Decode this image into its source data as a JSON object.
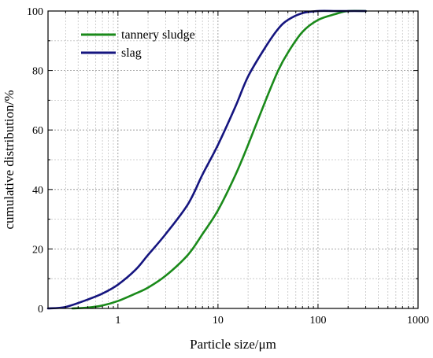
{
  "chart_data": {
    "type": "line",
    "xlabel": "Particle size/μm",
    "ylabel": "cumulative distribution/%",
    "x_scale": "log",
    "xlim": [
      0.2,
      1000
    ],
    "ylim": [
      0,
      100
    ],
    "x_ticks": [
      1,
      10,
      100,
      1000
    ],
    "x_tick_labels": [
      "1",
      "10",
      "100",
      "1000"
    ],
    "y_ticks": [
      0,
      20,
      40,
      60,
      80,
      100
    ],
    "y_tick_labels": [
      "0",
      "20",
      "40",
      "60",
      "80",
      "100"
    ],
    "grid": "dotted, major and minor",
    "legend_position": "top-left",
    "series": [
      {
        "name": "tannery sludge",
        "color": "#1a8a1a",
        "x": [
          0.35,
          0.5,
          0.7,
          1,
          1.5,
          2,
          3,
          5,
          7,
          10,
          15,
          20,
          30,
          40,
          50,
          70,
          100,
          150,
          200,
          300
        ],
        "y": [
          0,
          0.3,
          1,
          2.5,
          5,
          7,
          11,
          18,
          25,
          33,
          45,
          55,
          70,
          80,
          86,
          93,
          97,
          99,
          100,
          100
        ]
      },
      {
        "name": "slag",
        "color": "#15157f",
        "x": [
          0.2,
          0.3,
          0.5,
          0.7,
          1,
          1.5,
          2,
          3,
          5,
          7,
          10,
          15,
          20,
          30,
          40,
          50,
          70,
          100,
          150,
          200,
          300
        ],
        "y": [
          0,
          0.5,
          3,
          5,
          8,
          13,
          18,
          25,
          35,
          45,
          55,
          68,
          78,
          88,
          94,
          97,
          99.3,
          100,
          100,
          100,
          100
        ]
      }
    ]
  }
}
